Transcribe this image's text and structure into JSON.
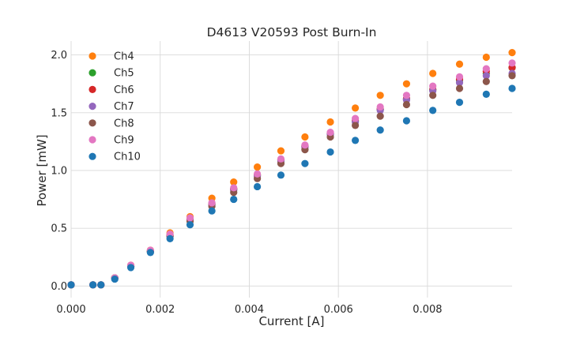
{
  "chart_data": {
    "type": "scatter",
    "title": "D4613 V20593 Post Burn-In",
    "xlabel": "Current [A]",
    "ylabel": "Power [mW]",
    "xlim": [
      0.0,
      0.0099
    ],
    "ylim": [
      -0.1,
      2.12
    ],
    "xticks": [
      "0.000",
      "0.002",
      "0.004",
      "0.006",
      "0.008"
    ],
    "xtick_values": [
      0.0,
      0.002,
      0.004,
      0.006,
      0.008
    ],
    "yticks": [
      "0.0",
      "0.5",
      "1.0",
      "1.5",
      "2.0"
    ],
    "ytick_values": [
      0.0,
      0.5,
      1.0,
      1.5,
      2.0
    ],
    "grid": true,
    "legend_position": "upper-left",
    "x": [
      0.0,
      0.00049,
      0.00067,
      0.00098,
      0.00134,
      0.00178,
      0.00222,
      0.00267,
      0.00316,
      0.00365,
      0.00418,
      0.00471,
      0.00525,
      0.00582,
      0.00638,
      0.00694,
      0.00753,
      0.00812,
      0.00872,
      0.00932,
      0.0099
    ],
    "series": [
      {
        "name": "Ch4",
        "color": "#ff7f0e",
        "values": [
          0.01,
          0.01,
          0.01,
          0.07,
          0.18,
          0.31,
          0.46,
          0.6,
          0.76,
          0.9,
          1.03,
          1.17,
          1.29,
          1.42,
          1.54,
          1.65,
          1.75,
          1.84,
          1.92,
          1.98,
          2.02
        ]
      },
      {
        "name": "Ch5",
        "color": "#2ca02c",
        "values": [
          0.01,
          0.01,
          0.01,
          0.07,
          0.17,
          0.3,
          0.44,
          0.58,
          0.71,
          0.84,
          0.96,
          1.09,
          1.21,
          1.32,
          1.43,
          1.53,
          1.62,
          1.7,
          1.78,
          1.84,
          1.89
        ]
      },
      {
        "name": "Ch6",
        "color": "#d62728",
        "values": [
          0.01,
          0.01,
          0.01,
          0.07,
          0.17,
          0.3,
          0.44,
          0.58,
          0.71,
          0.84,
          0.96,
          1.09,
          1.21,
          1.32,
          1.43,
          1.53,
          1.62,
          1.7,
          1.79,
          1.86,
          1.89
        ]
      },
      {
        "name": "Ch7",
        "color": "#9467bd",
        "values": [
          0.01,
          0.01,
          0.01,
          0.07,
          0.17,
          0.3,
          0.43,
          0.57,
          0.7,
          0.83,
          0.95,
          1.08,
          1.2,
          1.31,
          1.42,
          1.52,
          1.61,
          1.69,
          1.76,
          1.82,
          1.84
        ]
      },
      {
        "name": "Ch8",
        "color": "#8c564b",
        "values": [
          0.01,
          0.01,
          0.01,
          0.07,
          0.17,
          0.3,
          0.43,
          0.56,
          0.69,
          0.81,
          0.93,
          1.06,
          1.18,
          1.29,
          1.39,
          1.47,
          1.57,
          1.65,
          1.71,
          1.77,
          1.82
        ]
      },
      {
        "name": "Ch9",
        "color": "#e377c2",
        "values": [
          0.01,
          0.01,
          0.01,
          0.07,
          0.18,
          0.31,
          0.45,
          0.59,
          0.72,
          0.85,
          0.97,
          1.1,
          1.22,
          1.33,
          1.45,
          1.55,
          1.65,
          1.73,
          1.81,
          1.88,
          1.93
        ]
      },
      {
        "name": "Ch10",
        "color": "#1f77b4",
        "values": [
          0.01,
          0.01,
          0.01,
          0.06,
          0.16,
          0.29,
          0.41,
          0.53,
          0.65,
          0.75,
          0.86,
          0.96,
          1.06,
          1.16,
          1.26,
          1.35,
          1.43,
          1.52,
          1.59,
          1.66,
          1.71
        ]
      }
    ]
  }
}
